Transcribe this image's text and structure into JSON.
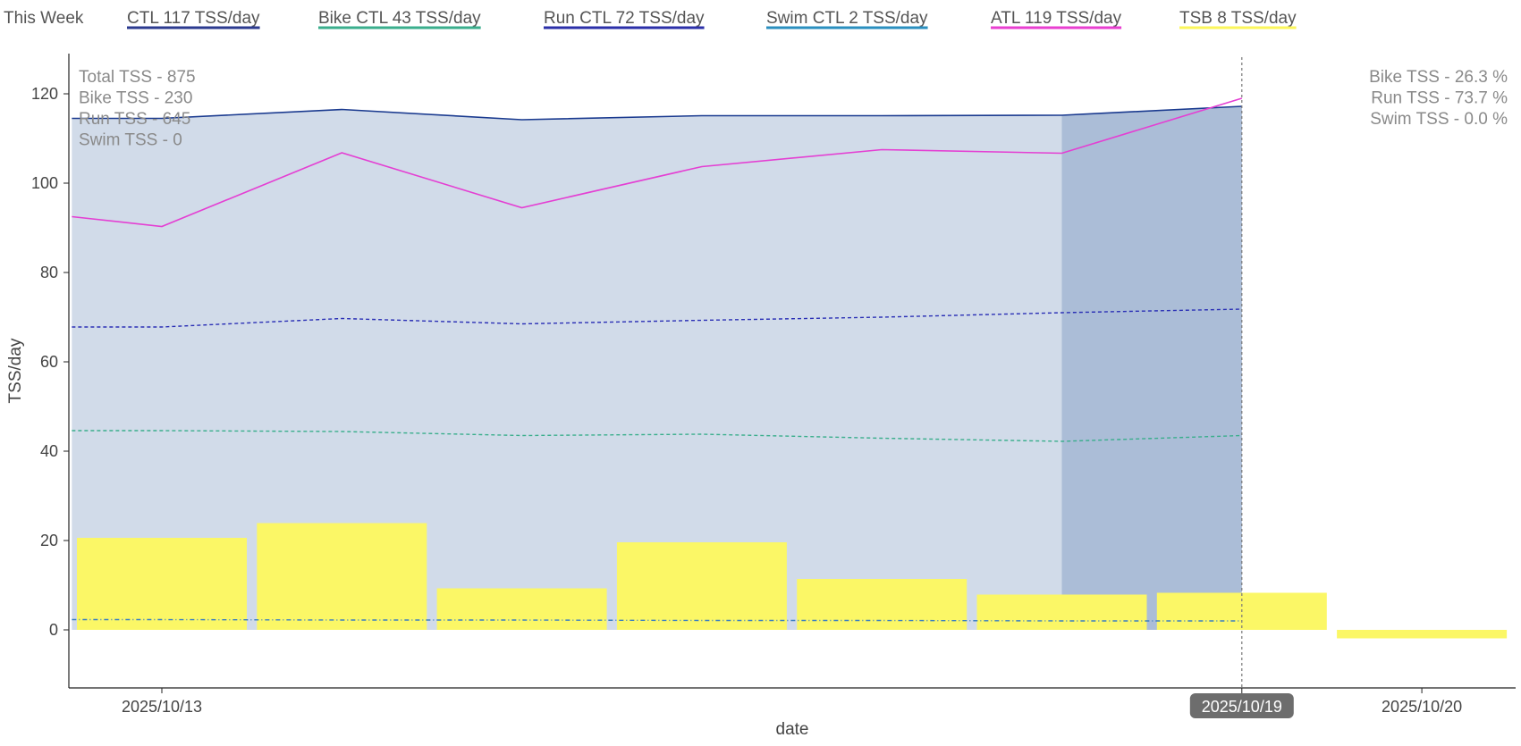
{
  "legend": {
    "title": "This Week",
    "items": [
      {
        "label": "CTL  117 TSS/day",
        "color": "#2b3a8f"
      },
      {
        "label": "Bike CTL  43 TSS/day",
        "color": "#3aae8c"
      },
      {
        "label": "Run CTL  72 TSS/day",
        "color": "#2b2fa8"
      },
      {
        "label": "Swim CTL  2 TSS/day",
        "color": "#2a8fbf"
      },
      {
        "label": "ATL  119 TSS/day",
        "color": "#e83fd0"
      },
      {
        "label": "TSB  8 TSS/day",
        "color": "#fbf65a"
      }
    ]
  },
  "annotations": {
    "left": [
      "Total TSS - 875",
      "Bike TSS - 230",
      "Run TSS - 645",
      "Swim TSS - 0"
    ],
    "right": [
      "Bike TSS - 26.3 %",
      "Run TSS - 73.7 %",
      "Swim TSS - 0.0 %"
    ]
  },
  "hover_date_label": "2025/10/19",
  "colors": {
    "area_fill": "#d1dbe9",
    "area_highlight": "#abbdd7",
    "ctl": "#1a3a8f",
    "bike_ctl": "#3aae8c",
    "run_ctl": "#2a2fb5",
    "swim_ctl": "#3a7fc1",
    "atl": "#e43fd3",
    "tsb": "#fbf766",
    "axis": "#222222",
    "vline": "#777777",
    "hover_bg": "#6d6d6d"
  },
  "chart_data": {
    "type": "line",
    "xlabel": "date",
    "ylabel": "TSS/day",
    "ylim": [
      -13,
      129
    ],
    "yticks": [
      0,
      20,
      40,
      60,
      80,
      100,
      120
    ],
    "x_ticks": [
      {
        "x": 1,
        "label": "2025/10/13"
      },
      {
        "x": 7,
        "label": "2025/10/19"
      },
      {
        "x": 8,
        "label": "2025/10/20"
      }
    ],
    "x": [
      0.5,
      1,
      2,
      3,
      4,
      5,
      6,
      7
    ],
    "series": [
      {
        "name": "CTL",
        "key": "ctl",
        "style": "solid",
        "values": [
          114.5,
          114.5,
          116.5,
          114.2,
          115.1,
          115.1,
          115.2,
          117.2
        ]
      },
      {
        "name": "ATL",
        "key": "atl",
        "style": "solid",
        "values": [
          92.5,
          90.3,
          106.8,
          94.5,
          103.7,
          107.5,
          106.7,
          119
        ]
      },
      {
        "name": "Run CTL",
        "key": "run_ctl",
        "style": "dashed",
        "values": [
          67.8,
          67.8,
          69.7,
          68.5,
          69.3,
          70.0,
          71.0,
          71.8
        ]
      },
      {
        "name": "Bike CTL",
        "key": "bike_ctl",
        "style": "dashed",
        "values": [
          44.6,
          44.6,
          44.4,
          43.5,
          43.8,
          42.9,
          42.2,
          43.5
        ]
      },
      {
        "name": "Swim CTL",
        "key": "swim_ctl",
        "style": "dashed",
        "values": [
          2.3,
          2.3,
          2.2,
          2.2,
          2.1,
          2.1,
          2.0,
          2.0
        ]
      }
    ],
    "tsb_bars": {
      "name": "TSB",
      "x": [
        1,
        2,
        3,
        4,
        5,
        6,
        7,
        8
      ],
      "values": [
        20.6,
        23.9,
        9.3,
        19.6,
        11.4,
        7.9,
        8.3,
        -1.9
      ]
    },
    "highlight_range": [
      6,
      7
    ],
    "vline_x": 7
  }
}
